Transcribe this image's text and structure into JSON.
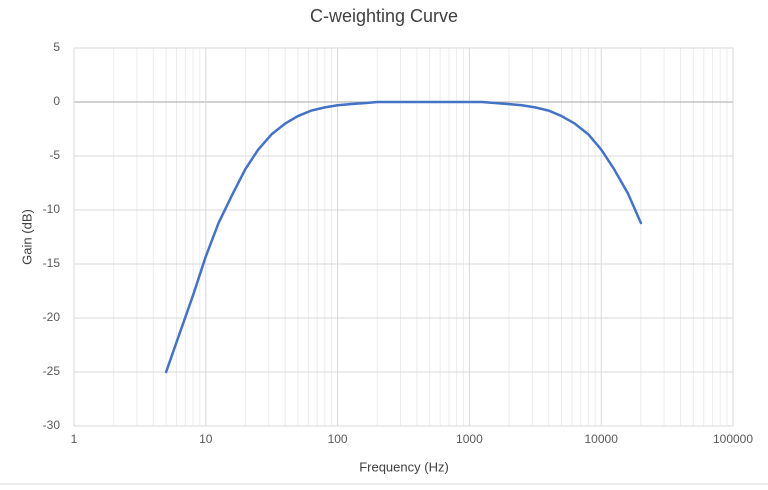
{
  "chart_data": {
    "type": "line",
    "title": "C-weighting Curve",
    "x_label": "Frequency (Hz)",
    "y_label": "Gain (dB)",
    "x_scale": "log",
    "grid": true,
    "x": [
      5,
      6.3,
      8,
      10,
      12.5,
      16,
      20,
      25,
      31.5,
      40,
      50,
      63,
      80,
      100,
      125,
      160,
      200,
      250,
      315,
      400,
      500,
      630,
      800,
      1000,
      1250,
      1600,
      2000,
      2500,
      3150,
      4000,
      5000,
      6300,
      8000,
      10000,
      12500,
      16000,
      20000
    ],
    "series": [
      {
        "name": "C-weighting",
        "color": "#4472c4",
        "values": [
          -25,
          -21.5,
          -17.9,
          -14.3,
          -11.2,
          -8.5,
          -6.2,
          -4.4,
          -3.0,
          -2.0,
          -1.3,
          -0.8,
          -0.5,
          -0.3,
          -0.2,
          -0.1,
          0.0,
          0.0,
          0.0,
          0.0,
          0.0,
          0.0,
          0.0,
          0.0,
          0.0,
          -0.1,
          -0.2,
          -0.3,
          -0.5,
          -0.8,
          -1.3,
          -2.0,
          -3.0,
          -4.4,
          -6.2,
          -8.5,
          -11.2
        ]
      }
    ],
    "xlim": [
      1,
      100000
    ],
    "xticks": [
      1,
      10,
      100,
      1000,
      10000,
      100000
    ],
    "ylim": [
      -30,
      5
    ],
    "yticks": [
      -30,
      -25,
      -20,
      -15,
      -10,
      -5,
      0,
      5
    ]
  }
}
